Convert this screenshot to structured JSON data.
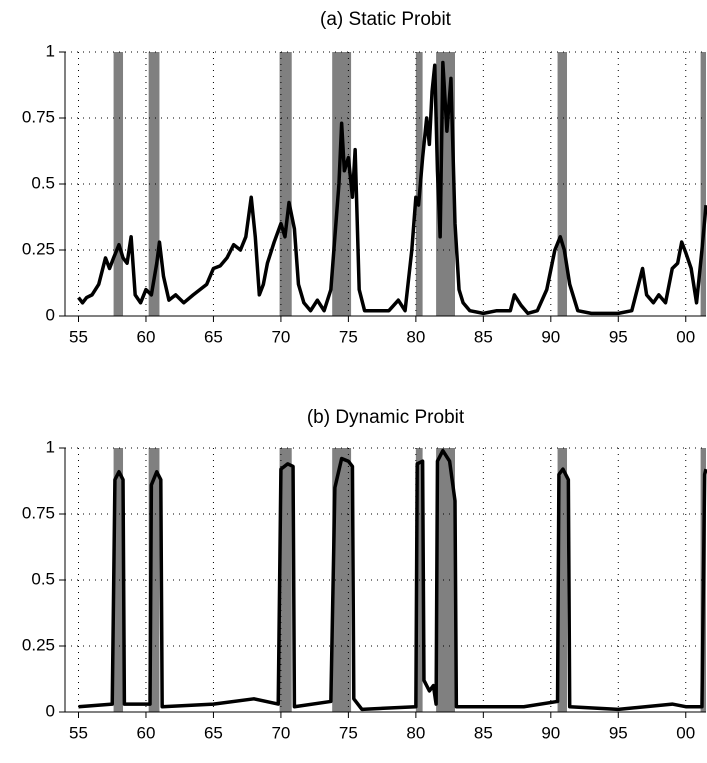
{
  "chart_data": [
    {
      "type": "line",
      "title": "(a) Static Probit",
      "x": [
        1955,
        1955.3,
        1955.6,
        1956,
        1956.5,
        1957,
        1957.3,
        1957.6,
        1958,
        1958.3,
        1958.6,
        1958.9,
        1959.2,
        1959.6,
        1960,
        1960.4,
        1960.8,
        1961,
        1961.3,
        1961.7,
        1962.2,
        1962.8,
        1963.5,
        1964,
        1964.5,
        1965,
        1965.5,
        1966,
        1966.5,
        1967,
        1967.4,
        1967.8,
        1968.1,
        1968.4,
        1968.7,
        1969,
        1969.5,
        1970,
        1970.3,
        1970.6,
        1971,
        1971.3,
        1971.7,
        1972.2,
        1972.7,
        1973.2,
        1973.7,
        1974,
        1974.3,
        1974.5,
        1974.7,
        1975,
        1975.3,
        1975.5,
        1975.8,
        1976.2,
        1977,
        1978,
        1978.7,
        1979.2,
        1979.7,
        1980,
        1980.2,
        1980.5,
        1980.8,
        1981,
        1981.2,
        1981.4,
        1981.6,
        1981.8,
        1982,
        1982.3,
        1982.6,
        1982.9,
        1983.2,
        1983.5,
        1984,
        1985,
        1986,
        1987,
        1987.3,
        1987.8,
        1988.3,
        1989,
        1989.7,
        1990.3,
        1990.7,
        1991,
        1991.4,
        1992,
        1993,
        1994,
        1995,
        1996,
        1996.5,
        1996.8,
        1997.1,
        1997.6,
        1998,
        1998.5,
        1999,
        1999.4,
        1999.7,
        2000,
        2000.4,
        2000.8,
        2001.2,
        2001.5
      ],
      "series": [
        {
          "color": "#000000",
          "values": [
            0.07,
            0.05,
            0.07,
            0.08,
            0.12,
            0.22,
            0.18,
            0.22,
            0.27,
            0.22,
            0.2,
            0.3,
            0.08,
            0.05,
            0.1,
            0.08,
            0.2,
            0.28,
            0.15,
            0.06,
            0.08,
            0.05,
            0.08,
            0.1,
            0.12,
            0.18,
            0.19,
            0.22,
            0.27,
            0.25,
            0.3,
            0.45,
            0.3,
            0.08,
            0.12,
            0.2,
            0.28,
            0.35,
            0.3,
            0.43,
            0.33,
            0.12,
            0.05,
            0.02,
            0.06,
            0.02,
            0.1,
            0.3,
            0.5,
            0.73,
            0.55,
            0.6,
            0.45,
            0.63,
            0.1,
            0.02,
            0.02,
            0.02,
            0.06,
            0.02,
            0.25,
            0.45,
            0.42,
            0.6,
            0.75,
            0.65,
            0.85,
            0.95,
            0.55,
            0.3,
            0.96,
            0.7,
            0.9,
            0.35,
            0.1,
            0.05,
            0.02,
            0.01,
            0.02,
            0.02,
            0.08,
            0.04,
            0.01,
            0.02,
            0.1,
            0.25,
            0.3,
            0.25,
            0.12,
            0.02,
            0.01,
            0.01,
            0.01,
            0.02,
            0.12,
            0.18,
            0.08,
            0.05,
            0.08,
            0.05,
            0.18,
            0.2,
            0.28,
            0.24,
            0.18,
            0.05,
            0.25,
            0.42
          ]
        }
      ],
      "recessions": {
        "color": "#808080",
        "spans": [
          [
            1957.6,
            1958.3
          ],
          [
            1960.2,
            1961.0
          ],
          [
            1969.9,
            1970.8
          ],
          [
            1973.8,
            1975.2
          ],
          [
            1980.0,
            1980.5
          ],
          [
            1981.5,
            1982.9
          ],
          [
            1990.5,
            1991.2
          ],
          [
            2001.1,
            2001.5
          ]
        ]
      },
      "xlim": [
        1954,
        2001.5
      ],
      "xticks": [
        {
          "value": 1955,
          "label": "55"
        },
        {
          "value": 1960,
          "label": "60"
        },
        {
          "value": 1965,
          "label": "65"
        },
        {
          "value": 1970,
          "label": "70"
        },
        {
          "value": 1975,
          "label": "75"
        },
        {
          "value": 1980,
          "label": "80"
        },
        {
          "value": 1985,
          "label": "85"
        },
        {
          "value": 1990,
          "label": "90"
        },
        {
          "value": 1995,
          "label": "95"
        },
        {
          "value": 2000,
          "label": "00"
        }
      ],
      "ylim": [
        0,
        1
      ],
      "yticks": [
        0,
        0.25,
        0.5,
        0.75,
        1
      ],
      "grid": true
    },
    {
      "type": "line",
      "title": "(b) Dynamic Probit",
      "x": [
        1955,
        1957.5,
        1957.7,
        1958,
        1958.3,
        1958.4,
        1960.3,
        1960.4,
        1960.8,
        1961.1,
        1961.2,
        1965,
        1968,
        1969.8,
        1970,
        1970.5,
        1970.9,
        1971,
        1973.7,
        1974,
        1974.5,
        1975,
        1975.3,
        1975.4,
        1976,
        1980,
        1980.1,
        1980.5,
        1980.6,
        1981,
        1981.3,
        1981.5,
        1981.6,
        1982,
        1982.5,
        1982.9,
        1983,
        1988,
        1990.5,
        1990.6,
        1990.9,
        1991.3,
        1991.4,
        1995,
        1999,
        2000,
        2001.2,
        2001.4,
        2001.5
      ],
      "series": [
        {
          "color": "#000000",
          "values": [
            0.02,
            0.03,
            0.88,
            0.91,
            0.88,
            0.03,
            0.03,
            0.86,
            0.91,
            0.88,
            0.02,
            0.03,
            0.05,
            0.03,
            0.92,
            0.94,
            0.93,
            0.02,
            0.04,
            0.85,
            0.96,
            0.95,
            0.93,
            0.05,
            0.01,
            0.02,
            0.94,
            0.95,
            0.12,
            0.08,
            0.1,
            0.03,
            0.95,
            0.99,
            0.95,
            0.8,
            0.02,
            0.02,
            0.04,
            0.9,
            0.92,
            0.88,
            0.02,
            0.01,
            0.03,
            0.02,
            0.02,
            0.9,
            0.92
          ]
        }
      ],
      "recessions": {
        "color": "#808080",
        "spans": [
          [
            1957.6,
            1958.3
          ],
          [
            1960.2,
            1961.0
          ],
          [
            1969.9,
            1970.8
          ],
          [
            1973.8,
            1975.2
          ],
          [
            1980.0,
            1980.5
          ],
          [
            1981.5,
            1982.9
          ],
          [
            1990.5,
            1991.2
          ],
          [
            2001.1,
            2001.5
          ]
        ]
      },
      "xlim": [
        1954,
        2001.5
      ],
      "xticks": [
        {
          "value": 1955,
          "label": "55"
        },
        {
          "value": 1960,
          "label": "60"
        },
        {
          "value": 1965,
          "label": "65"
        },
        {
          "value": 1970,
          "label": "70"
        },
        {
          "value": 1975,
          "label": "75"
        },
        {
          "value": 1980,
          "label": "80"
        },
        {
          "value": 1985,
          "label": "85"
        },
        {
          "value": 1990,
          "label": "90"
        },
        {
          "value": 1995,
          "label": "95"
        },
        {
          "value": 2000,
          "label": "00"
        }
      ],
      "ylim": [
        0,
        1
      ],
      "yticks": [
        0,
        0.25,
        0.5,
        0.75,
        1
      ],
      "grid": true
    }
  ]
}
